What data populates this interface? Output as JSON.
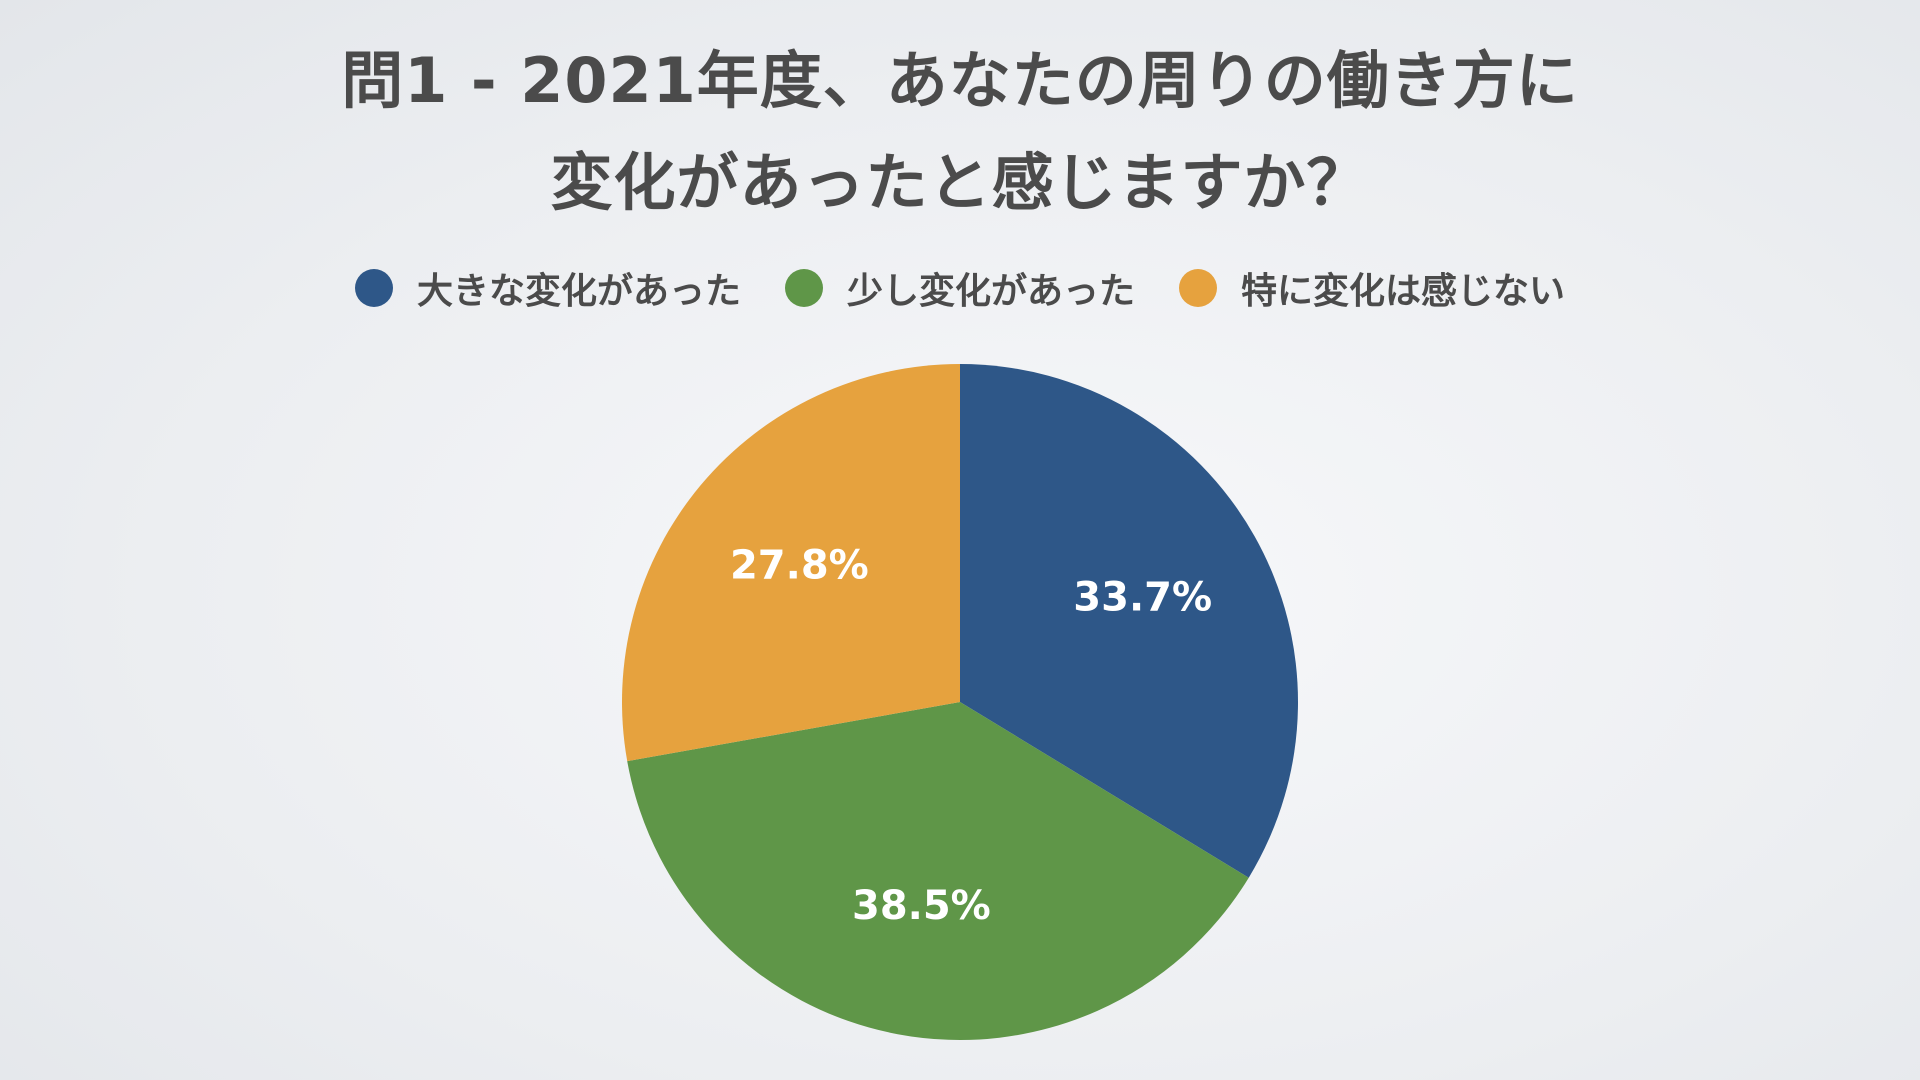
{
  "chart_data": {
    "type": "pie",
    "title_lines": [
      "問1 - 2021年度、あなたの周りの働き方に",
      "変化があったと感じますか？"
    ],
    "legend_position": "top",
    "slices": [
      {
        "label": "大きな変化があった",
        "value": 33.7,
        "display": "33.7%",
        "color": "#2e5788"
      },
      {
        "label": "少し変化があった",
        "value": 38.5,
        "display": "38.5%",
        "color": "#5f9648"
      },
      {
        "label": "特に変化は感じない",
        "value": 27.8,
        "display": "27.8%",
        "color": "#e6a23e"
      }
    ]
  }
}
